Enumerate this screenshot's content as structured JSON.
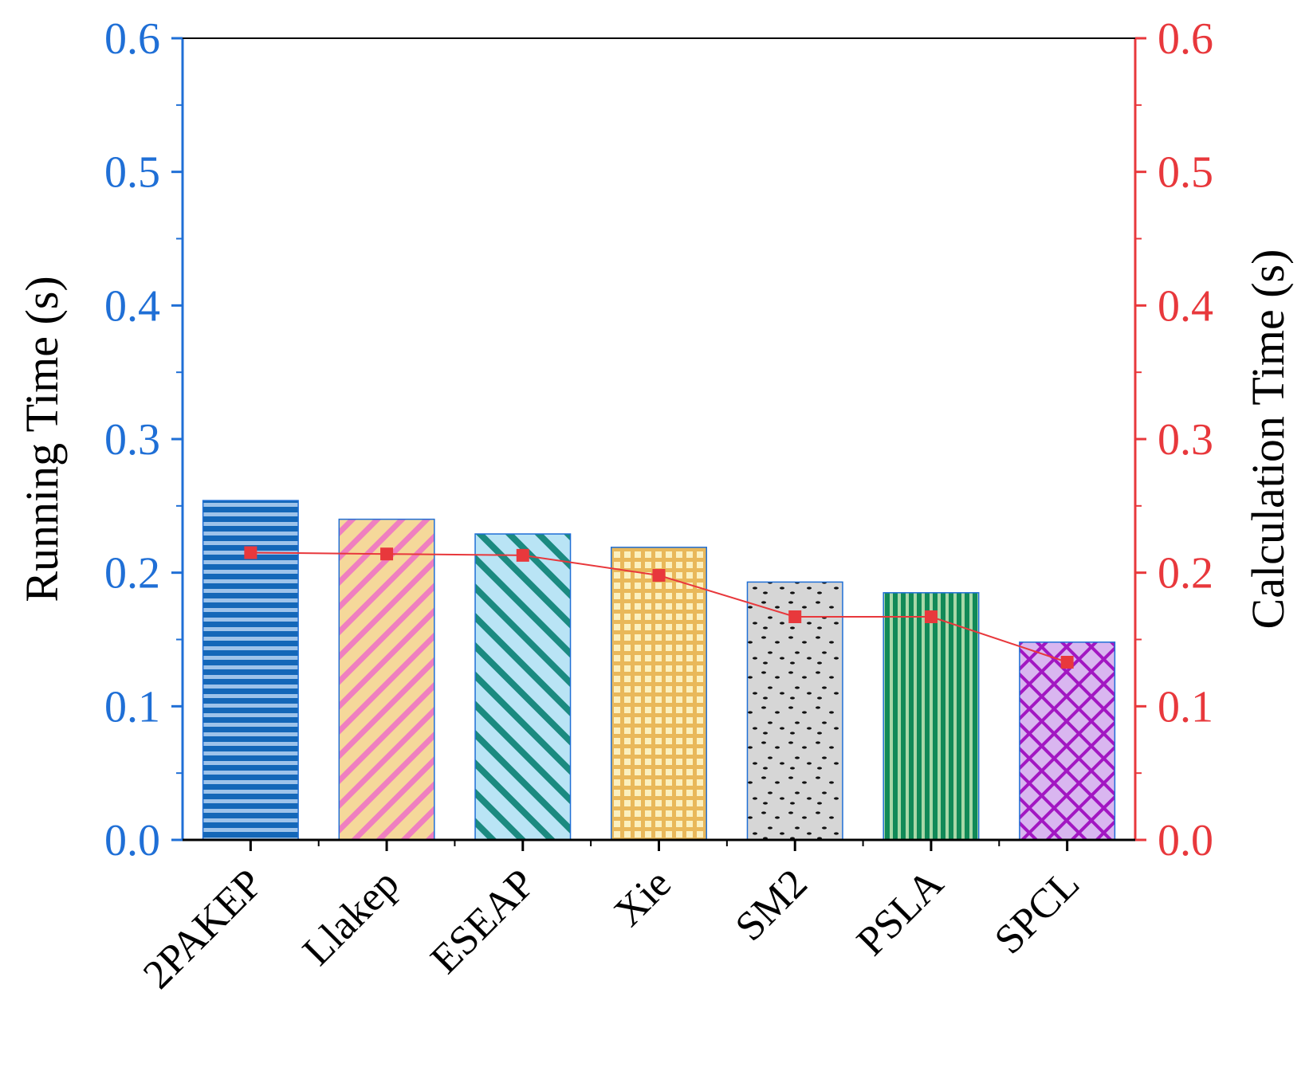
{
  "chart_data": {
    "type": "bar",
    "title": "",
    "xlabel": "",
    "ylabel": "Running Time (s)",
    "y2label": "Calculation Time (s)",
    "ylim": [
      0,
      0.6
    ],
    "y2lim": [
      0,
      0.6
    ],
    "yticks": [
      "0.0",
      "0.1",
      "0.2",
      "0.3",
      "0.4",
      "0.5",
      "0.6"
    ],
    "y2ticks": [
      "0.0",
      "0.1",
      "0.2",
      "0.3",
      "0.4",
      "0.5",
      "0.6"
    ],
    "categories": [
      "2PAKEP",
      "Llakep",
      "ESEAP",
      "Xie",
      "SM2",
      "PSLA",
      "SPCL"
    ],
    "series": [
      {
        "name": "Running Time",
        "type": "bar",
        "axis": "left",
        "values": [
          0.254,
          0.24,
          0.229,
          0.219,
          0.193,
          0.185,
          0.148
        ],
        "patterns": [
          "hlines",
          "diag-pink",
          "diag-teal",
          "grid",
          "dots",
          "vlines",
          "crosshatch"
        ]
      },
      {
        "name": "Calculation Time",
        "type": "line",
        "axis": "right",
        "values": [
          0.215,
          0.214,
          0.213,
          0.198,
          0.167,
          0.167,
          0.133
        ]
      }
    ],
    "colors": {
      "left_axis": "#1f6fd6",
      "right_axis": "#e8383c",
      "line": "#e8383c",
      "bar_border": "#1f6fd6"
    }
  }
}
